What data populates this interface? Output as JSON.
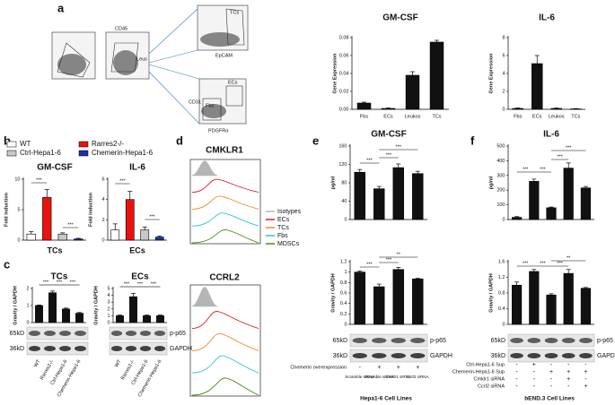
{
  "panel_letters": [
    "a",
    "b",
    "c",
    "d",
    "e",
    "f"
  ],
  "flow": {
    "gates": [
      "CD45",
      "Leus",
      "TCs",
      "EpCAM",
      "ECs",
      "CD31",
      "Fbs",
      "PDGFRα"
    ]
  },
  "legend_b": [
    {
      "name": "WT",
      "color": "#ffffff"
    },
    {
      "name": "Rarres2-/-",
      "color": "#e8130f"
    },
    {
      "name": "Ctrl-Hepa1-6",
      "color": "#c8c8c8"
    },
    {
      "name": "Chemerin-Hepa1-6",
      "color": "#1a2fa8"
    }
  ],
  "histograms": {
    "titles": [
      "CMKLR1",
      "CCRL2"
    ],
    "legend": [
      {
        "name": "Isotypes",
        "color": "#b5b5b5"
      },
      {
        "name": "ECs",
        "color": "#e0201b"
      },
      {
        "name": "TCs",
        "color": "#f08a24"
      },
      {
        "name": "Fbs",
        "color": "#2ec4d6"
      },
      {
        "name": "MDSCs",
        "color": "#4d8a12"
      }
    ]
  },
  "blots": {
    "c": {
      "markers": [
        "65kD",
        "36kD"
      ],
      "proteins": [
        "p-p65",
        "GAPDH"
      ]
    },
    "e": {
      "markers": [
        "65kD",
        "36kD"
      ],
      "proteins": [
        "p-p65",
        "GAPDH"
      ]
    },
    "f": {
      "markers": [
        "65kD",
        "36kD"
      ],
      "proteins": [
        "p-p65",
        "GAPDH"
      ]
    }
  },
  "treatments": {
    "e": {
      "rows": [
        {
          "label": "Chemerin overexpression",
          "signs": [
            "-",
            "+",
            "+",
            "+"
          ]
        }
      ],
      "sirna": [
        "Scramble siRNA",
        "Scramble siRNA",
        "Cmklr1 siRNA",
        "Ccrl2 siRNA"
      ],
      "footer": "Hepa1-6 Cell Lines"
    },
    "f": {
      "rows": [
        {
          "label": "Ctrl-Hepa1-6 Sup",
          "signs": [
            "-",
            "+",
            "-",
            "-",
            "-"
          ]
        },
        {
          "label": "Chemerin-Hepa1-6 Sup",
          "signs": [
            "-",
            "-",
            "+",
            "+",
            "+"
          ]
        },
        {
          "label": "Cmklr1 siRNA",
          "signs": [
            "-",
            "-",
            "-",
            "+",
            "-"
          ]
        },
        {
          "label": "Ccrl2 siRNA",
          "signs": [
            "-",
            "-",
            "-",
            "-",
            "+"
          ]
        }
      ],
      "footer": "bEND.3 Cell Lines"
    }
  },
  "chart_data": [
    {
      "type": "bar",
      "title": "GM-CSF",
      "ylabel": "Gene Expression",
      "categories": [
        "Fbs",
        "ECs",
        "Leukos",
        "TCs"
      ],
      "values": [
        0.007,
        0.001,
        0.038,
        0.075
      ],
      "errors": [
        0.001,
        0.0005,
        0.004,
        0.002
      ],
      "color": "#111111",
      "ylim": [
        0,
        0.08
      ],
      "yticks": [
        {
          "value": 0,
          "label": "0.00"
        },
        0.02,
        0.04,
        0.06,
        0.08
      ]
    },
    {
      "type": "bar",
      "title": "IL-6",
      "ylabel": "Gene Expression",
      "categories": [
        "Fbs",
        "ECs",
        "Leukos",
        "TCs"
      ],
      "values": [
        0.1,
        5.1,
        0.1,
        0.05
      ],
      "errors": [
        0.05,
        0.9,
        0.05,
        0.03
      ],
      "color": "#111111",
      "ylim": [
        0,
        8
      ],
      "yticks": [
        0,
        2,
        4,
        6,
        8
      ]
    },
    {
      "type": "bar",
      "title": "GM-CSF",
      "ylabel": "Fold induction",
      "xlabel": "TCs",
      "categories": [
        null,
        null,
        null,
        null
      ],
      "values": [
        1,
        7,
        1,
        0.2
      ],
      "errors": [
        0.4,
        1.3,
        0.2,
        0.1
      ],
      "colors": [
        "#ffffff",
        "#e8130f",
        "#c8c8c8",
        "#1a2fa8"
      ],
      "ylim": [
        0,
        10
      ],
      "yticks": [
        0,
        5,
        10
      ],
      "annotations": [
        "***",
        "***"
      ]
    },
    {
      "type": "bar",
      "title": "IL-6",
      "ylabel": "Fold induction",
      "xlabel": "ECs",
      "categories": [
        null,
        null,
        null,
        null
      ],
      "values": [
        1,
        4,
        1,
        0.3
      ],
      "errors": [
        0.6,
        0.8,
        0.3,
        0.1
      ],
      "colors": [
        "#ffffff",
        "#e8130f",
        "#c8c8c8",
        "#1a2fa8"
      ],
      "ylim": [
        0,
        6
      ],
      "yticks": [
        0,
        2,
        4,
        6
      ],
      "annotations": [
        "***",
        "***"
      ]
    },
    {
      "type": "bar",
      "title": "TCs",
      "ylabel": "Gravity / GAPDH",
      "categories": [
        "WT",
        "Rarres2-/-",
        "Ctrl-Hepa1-6",
        "Chemerin-Hepa1-6"
      ],
      "values": [
        1,
        1.75,
        0.8,
        0.55
      ],
      "errors": [
        0.03,
        0.1,
        0.05,
        0.04
      ],
      "color": "#111111",
      "ylim": [
        0,
        2
      ],
      "yticks": [
        0,
        1,
        2
      ],
      "annotations": [
        "***",
        "***",
        "***"
      ]
    },
    {
      "type": "bar",
      "title": "ECs",
      "ylabel": "Gravity / GAPDH",
      "categories": [
        "WT",
        "Rarres2-/-",
        "Ctrl-Hepa1-6",
        "Chemerin-Hepa1-6"
      ],
      "values": [
        1,
        3.8,
        1,
        1
      ],
      "errors": [
        0.1,
        0.5,
        0.1,
        0.1
      ],
      "color": "#111111",
      "ylim": [
        0,
        5
      ],
      "yticks": [
        0,
        1,
        2,
        3,
        4,
        5
      ],
      "annotations": [
        "***",
        "***",
        "***"
      ]
    },
    {
      "type": "bar",
      "title": "GM-CSF",
      "ylabel": "pg/ml",
      "categories": [
        null,
        null,
        null,
        null
      ],
      "values": [
        103,
        67,
        113,
        100
      ],
      "errors": [
        6,
        5,
        8,
        5
      ],
      "color": "#111111",
      "ylim": [
        0,
        160
      ],
      "yticks": [
        0,
        40,
        80,
        120,
        160
      ],
      "annotations": [
        "***",
        "***",
        "***"
      ]
    },
    {
      "type": "bar",
      "ylabel": "Gravity / GAPDH",
      "categories": [
        null,
        null,
        null,
        null
      ],
      "values": [
        1.0,
        0.72,
        1.05,
        0.87
      ],
      "errors": [
        0.02,
        0.05,
        0.04,
        0.01
      ],
      "color": "#111111",
      "ylim": [
        0,
        1.2
      ],
      "yticks": [
        0,
        0.2,
        0.4,
        0.6,
        0.8,
        1,
        1.2
      ],
      "annotations": [
        "***",
        "***",
        "**"
      ]
    },
    {
      "type": "bar",
      "title": "IL-6",
      "ylabel": "pg/ml",
      "categories": [
        null,
        null,
        null,
        null,
        null
      ],
      "values": [
        15,
        260,
        80,
        350,
        215
      ],
      "errors": [
        5,
        15,
        5,
        35,
        10
      ],
      "color": "#111111",
      "ylim": [
        0,
        500
      ],
      "yticks": [
        0,
        100,
        200,
        300,
        400,
        500
      ],
      "annotations": [
        "***",
        "***",
        "***",
        "***"
      ]
    },
    {
      "type": "bar",
      "ylabel": "Gravity / GAPDH",
      "categories": [
        null,
        null,
        null,
        null,
        null
      ],
      "values": [
        1.0,
        1.35,
        0.75,
        1.3,
        0.92
      ],
      "errors": [
        0.08,
        0.05,
        0.03,
        0.1,
        0.02
      ],
      "color": "#111111",
      "ylim": [
        0,
        1.6
      ],
      "yticks": [
        0,
        0.4,
        0.8,
        1.2,
        1.6
      ],
      "annotations": [
        "***",
        "***",
        "***",
        "**"
      ]
    }
  ]
}
